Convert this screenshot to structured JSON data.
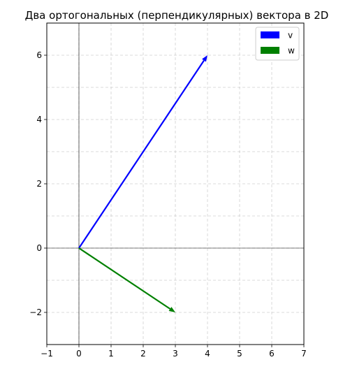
{
  "chart_data": {
    "type": "line",
    "title": "Два ортогональных (перпендикулярных) вектора в 2D",
    "xlabel": "",
    "ylabel": "",
    "xlim": [
      -1,
      7
    ],
    "ylim": [
      -3,
      7
    ],
    "xticks": [
      -1,
      0,
      1,
      2,
      3,
      4,
      5,
      6,
      7
    ],
    "yticks": [
      -2,
      0,
      2,
      4,
      6
    ],
    "xtick_labels": [
      "−1",
      "0",
      "1",
      "2",
      "3",
      "4",
      "5",
      "6",
      "7"
    ],
    "ytick_labels": [
      "−2",
      "0",
      "2",
      "4",
      "6"
    ],
    "grid": true,
    "legend_position": "top-right",
    "series": [
      {
        "name": "v",
        "color": "#0000ff",
        "origin": [
          0,
          0
        ],
        "vector": [
          4,
          6
        ]
      },
      {
        "name": "w",
        "color": "#008000",
        "origin": [
          0,
          0
        ],
        "vector": [
          3,
          -2
        ]
      }
    ]
  }
}
